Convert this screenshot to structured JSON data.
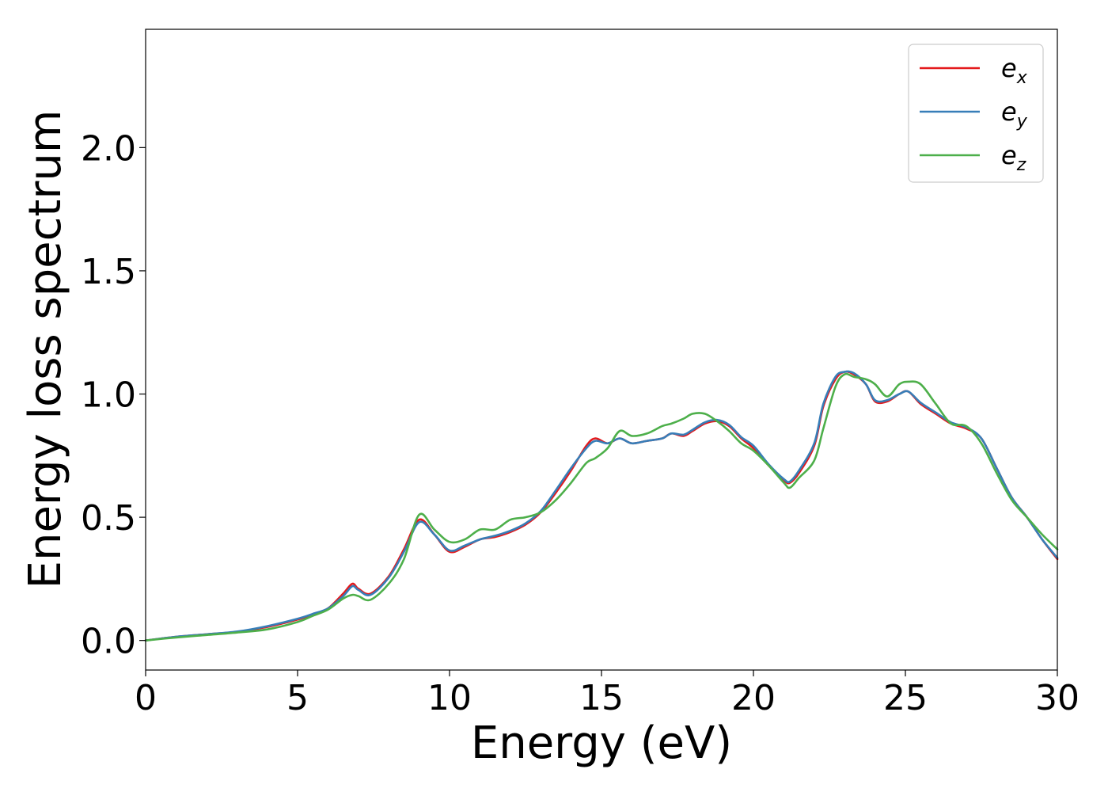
{
  "chart_data": {
    "type": "line",
    "xlabel": "Energy (eV)",
    "ylabel": "Energy loss spectrum",
    "xlim": [
      0,
      30
    ],
    "ylim": [
      -0.12,
      2.48
    ],
    "xticks": [
      "0",
      "5",
      "10",
      "15",
      "20",
      "25",
      "30"
    ],
    "xtick_values": [
      0,
      5,
      10,
      15,
      20,
      25,
      30
    ],
    "yticks": [
      "0.0",
      "0.5",
      "1.0",
      "1.5",
      "2.0"
    ],
    "ytick_values": [
      0,
      0.5,
      1.0,
      1.5,
      2.0
    ],
    "grid": false,
    "legend_position": "top-right",
    "series": [
      {
        "name": "e_x",
        "legend_base": "e",
        "legend_sub": "x",
        "color": "#e41a1c",
        "x": [
          0,
          1,
          2,
          3,
          4,
          5,
          5.5,
          6,
          6.5,
          6.8,
          7,
          7.4,
          8,
          8.5,
          9,
          9.5,
          10,
          10.5,
          11,
          11.5,
          12,
          12.5,
          13,
          13.5,
          14,
          14.5,
          14.8,
          15.2,
          15.6,
          16,
          16.5,
          17,
          17.3,
          17.7,
          18,
          18.4,
          18.8,
          19.2,
          19.6,
          20,
          20.5,
          21,
          21.2,
          21.5,
          22,
          22.3,
          22.7,
          23,
          23.3,
          23.7,
          24,
          24.4,
          24.8,
          25.1,
          25.5,
          26,
          26.5,
          27,
          27.5,
          28,
          28.5,
          29,
          29.5,
          30
        ],
        "y": [
          0.0,
          0.015,
          0.025,
          0.035,
          0.055,
          0.085,
          0.105,
          0.13,
          0.19,
          0.23,
          0.21,
          0.19,
          0.26,
          0.37,
          0.49,
          0.43,
          0.36,
          0.38,
          0.41,
          0.42,
          0.44,
          0.47,
          0.52,
          0.6,
          0.69,
          0.79,
          0.82,
          0.8,
          0.82,
          0.8,
          0.81,
          0.82,
          0.84,
          0.83,
          0.85,
          0.88,
          0.89,
          0.87,
          0.82,
          0.78,
          0.71,
          0.65,
          0.64,
          0.68,
          0.79,
          0.95,
          1.06,
          1.09,
          1.08,
          1.04,
          0.97,
          0.97,
          1.0,
          1.01,
          0.96,
          0.92,
          0.88,
          0.86,
          0.82,
          0.7,
          0.58,
          0.5,
          0.41,
          0.33
        ]
      },
      {
        "name": "e_y",
        "legend_base": "e",
        "legend_sub": "y",
        "color": "#377eb8",
        "x": [
          0,
          1,
          2,
          3,
          4,
          5,
          5.5,
          6,
          6.5,
          6.8,
          7,
          7.4,
          8,
          8.5,
          9,
          9.5,
          10,
          10.5,
          11,
          11.5,
          12,
          12.5,
          13,
          13.5,
          14,
          14.5,
          14.8,
          15.2,
          15.6,
          16,
          16.5,
          17,
          17.3,
          17.7,
          18,
          18.4,
          18.8,
          19.2,
          19.6,
          20,
          20.5,
          21,
          21.2,
          21.5,
          22,
          22.3,
          22.7,
          23,
          23.3,
          23.7,
          24,
          24.4,
          24.8,
          25.1,
          25.5,
          26,
          26.5,
          27,
          27.5,
          28,
          28.5,
          29,
          29.5,
          30
        ],
        "y": [
          0.0,
          0.015,
          0.025,
          0.036,
          0.058,
          0.088,
          0.108,
          0.13,
          0.18,
          0.22,
          0.205,
          0.185,
          0.255,
          0.36,
          0.48,
          0.43,
          0.365,
          0.385,
          0.41,
          0.425,
          0.445,
          0.475,
          0.525,
          0.61,
          0.7,
          0.78,
          0.81,
          0.8,
          0.82,
          0.8,
          0.81,
          0.82,
          0.84,
          0.835,
          0.855,
          0.885,
          0.895,
          0.875,
          0.825,
          0.79,
          0.715,
          0.655,
          0.645,
          0.69,
          0.8,
          0.96,
          1.07,
          1.09,
          1.085,
          1.04,
          0.975,
          0.975,
          1.0,
          1.01,
          0.965,
          0.925,
          0.885,
          0.865,
          0.82,
          0.7,
          0.58,
          0.5,
          0.41,
          0.335
        ]
      },
      {
        "name": "e_z",
        "legend_base": "e",
        "legend_sub": "z",
        "color": "#4daf4a",
        "x": [
          0,
          1,
          2,
          3,
          4,
          5,
          5.5,
          6,
          6.5,
          6.8,
          7,
          7.4,
          8,
          8.5,
          9,
          9.5,
          10,
          10.5,
          11,
          11.5,
          12,
          12.5,
          13,
          13.5,
          14,
          14.5,
          14.8,
          15.2,
          15.6,
          16,
          16.5,
          17,
          17.3,
          17.7,
          18,
          18.4,
          18.8,
          19.2,
          19.6,
          20,
          20.5,
          21,
          21.2,
          21.5,
          22,
          22.3,
          22.7,
          23,
          23.3,
          23.7,
          24,
          24.4,
          24.8,
          25.1,
          25.5,
          26,
          26.5,
          27,
          27.5,
          28,
          28.5,
          29,
          29.5,
          30
        ],
        "y": [
          0.0,
          0.012,
          0.022,
          0.032,
          0.045,
          0.075,
          0.1,
          0.125,
          0.17,
          0.185,
          0.18,
          0.165,
          0.23,
          0.33,
          0.51,
          0.45,
          0.4,
          0.41,
          0.45,
          0.45,
          0.49,
          0.5,
          0.52,
          0.57,
          0.64,
          0.72,
          0.74,
          0.78,
          0.85,
          0.83,
          0.84,
          0.87,
          0.88,
          0.9,
          0.92,
          0.92,
          0.89,
          0.85,
          0.8,
          0.77,
          0.71,
          0.64,
          0.62,
          0.66,
          0.73,
          0.86,
          1.03,
          1.08,
          1.07,
          1.06,
          1.04,
          0.99,
          1.04,
          1.05,
          1.04,
          0.96,
          0.88,
          0.87,
          0.8,
          0.68,
          0.57,
          0.5,
          0.43,
          0.37
        ]
      }
    ]
  }
}
